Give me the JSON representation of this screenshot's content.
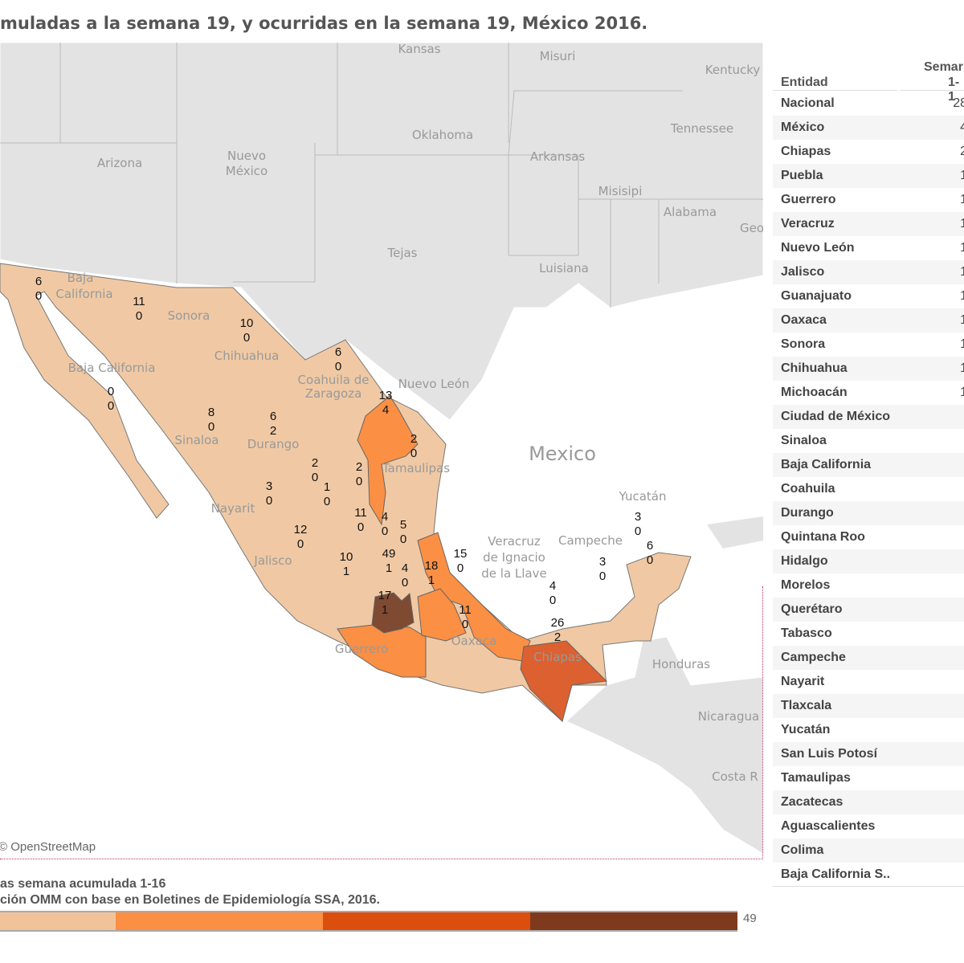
{
  "title": "muladas a la semana 19, y ocurridas en la semana 19, México 2016.",
  "map": {
    "attribution": "© OpenStreetMap",
    "colors": {
      "c1": "#f1c39a",
      "c2": "#fb8f44",
      "c3": "#dc4e0e",
      "c4": "#7f3a1e",
      "land": "#e3e3e3",
      "water": "#ffffff",
      "base": "#f0c9a4"
    },
    "place_names": [
      "Kansas",
      "Misuri",
      "Kentucky",
      "Oklahoma",
      "Tennessee",
      "Arizona",
      "Nuevo",
      "México",
      "Arkansas",
      "Misisipi",
      "Alabama",
      "Geo",
      "Tejas",
      "Luisiana",
      "Baja",
      "California",
      "Sonora",
      "Chihuahua",
      "Coahuila de",
      "Zaragoza",
      "Nuevo León",
      "Baja California",
      "Sinaloa",
      "Durango",
      "Tamaulipas",
      "Mexico",
      "Nayarit",
      "Jalisco",
      "Veracruz",
      "de Ignacio",
      "de la Llave",
      "Guerrero",
      "Oaxaca",
      "Campeche",
      "Yucatán",
      "Chiapas",
      "Honduras",
      "Nicaragua",
      "Costa R"
    ],
    "state_labels": [
      {
        "state": "Baja California",
        "acum": "6",
        "week": "0"
      },
      {
        "state": "Sonora",
        "acum": "11",
        "week": "0"
      },
      {
        "state": "Chihuahua",
        "acum": "10",
        "week": "0"
      },
      {
        "state": "Coahuila",
        "acum": "6",
        "week": "0"
      },
      {
        "state": "Nuevo León",
        "acum": "13",
        "week": "4"
      },
      {
        "state": "Baja California Sur",
        "acum": "0",
        "week": "0"
      },
      {
        "state": "Sinaloa",
        "acum": "8",
        "week": "0"
      },
      {
        "state": "Durango",
        "acum": "6",
        "week": "2"
      },
      {
        "state": "Tamaulipas",
        "acum": "2",
        "week": "0"
      },
      {
        "state": "Zacatecas",
        "acum": "2",
        "week": "0"
      },
      {
        "state": "San Luis Potosí",
        "acum": "2",
        "week": "0"
      },
      {
        "state": "Aguascalientes",
        "acum": "1",
        "week": "0"
      },
      {
        "state": "Nayarit",
        "acum": "3",
        "week": "0"
      },
      {
        "state": "Guanajuato",
        "acum": "11",
        "week": "0"
      },
      {
        "state": "Querétaro",
        "acum": "4",
        "week": "0"
      },
      {
        "state": "Hidalgo",
        "acum": "5",
        "week": "0"
      },
      {
        "state": "Jalisco",
        "acum": "12",
        "week": "0"
      },
      {
        "state": "Veracruz",
        "acum": "15",
        "week": "0"
      },
      {
        "state": "México",
        "acum": "49",
        "week": "1"
      },
      {
        "state": "Michoacán",
        "acum": "10",
        "week": "1"
      },
      {
        "state": "Morelos",
        "acum": "4",
        "week": "0"
      },
      {
        "state": "Puebla",
        "acum": "18",
        "week": "1"
      },
      {
        "state": "Guerrero",
        "acum": "17",
        "week": "1"
      },
      {
        "state": "Oaxaca",
        "acum": "11",
        "week": "0"
      },
      {
        "state": "Tabasco",
        "acum": "4",
        "week": "0"
      },
      {
        "state": "Campeche",
        "acum": "3",
        "week": "0"
      },
      {
        "state": "Yucatán",
        "acum": "3",
        "week": "0"
      },
      {
        "state": "Quintana Roo",
        "acum": "6",
        "week": "0"
      },
      {
        "state": "Chiapas",
        "acum": "26",
        "week": "2"
      }
    ]
  },
  "legend": {
    "title1": "as semana acumulada 1-16",
    "title2": "ción OMM con base en Boletines de Epidemiología SSA, 2016.",
    "max": "49",
    "colors": [
      "#f1c39a",
      "#fb8f44",
      "#dc4e0e",
      "#7f3a1e"
    ]
  },
  "table": {
    "header_entidad": "Entidad",
    "header_col1_line1": "Semar",
    "header_col1_line2": "1-1",
    "rows": [
      {
        "name": "Nacional",
        "val": "28"
      },
      {
        "name": "México",
        "val": "4"
      },
      {
        "name": "Chiapas",
        "val": "2"
      },
      {
        "name": "Puebla",
        "val": "1"
      },
      {
        "name": "Guerrero",
        "val": "1"
      },
      {
        "name": "Veracruz",
        "val": "1"
      },
      {
        "name": "Nuevo León",
        "val": "1"
      },
      {
        "name": "Jalisco",
        "val": "1"
      },
      {
        "name": "Guanajuato",
        "val": "1"
      },
      {
        "name": "Oaxaca",
        "val": "1"
      },
      {
        "name": "Sonora",
        "val": "1"
      },
      {
        "name": "Chihuahua",
        "val": "1"
      },
      {
        "name": "Michoacán",
        "val": "1"
      },
      {
        "name": "Ciudad de México",
        "val": ""
      },
      {
        "name": "Sinaloa",
        "val": ""
      },
      {
        "name": "Baja California",
        "val": ""
      },
      {
        "name": "Coahuila",
        "val": ""
      },
      {
        "name": "Durango",
        "val": ""
      },
      {
        "name": "Quintana Roo",
        "val": ""
      },
      {
        "name": "Hidalgo",
        "val": ""
      },
      {
        "name": "Morelos",
        "val": ""
      },
      {
        "name": "Querétaro",
        "val": ""
      },
      {
        "name": "Tabasco",
        "val": ""
      },
      {
        "name": "Campeche",
        "val": ""
      },
      {
        "name": "Nayarit",
        "val": ""
      },
      {
        "name": "Tlaxcala",
        "val": ""
      },
      {
        "name": "Yucatán",
        "val": ""
      },
      {
        "name": "San Luis Potosí",
        "val": ""
      },
      {
        "name": "Tamaulipas",
        "val": ""
      },
      {
        "name": "Zacatecas",
        "val": ""
      },
      {
        "name": "Aguascalientes",
        "val": ""
      },
      {
        "name": "Colima",
        "val": ""
      },
      {
        "name": "Baja California S..",
        "val": ""
      }
    ]
  }
}
